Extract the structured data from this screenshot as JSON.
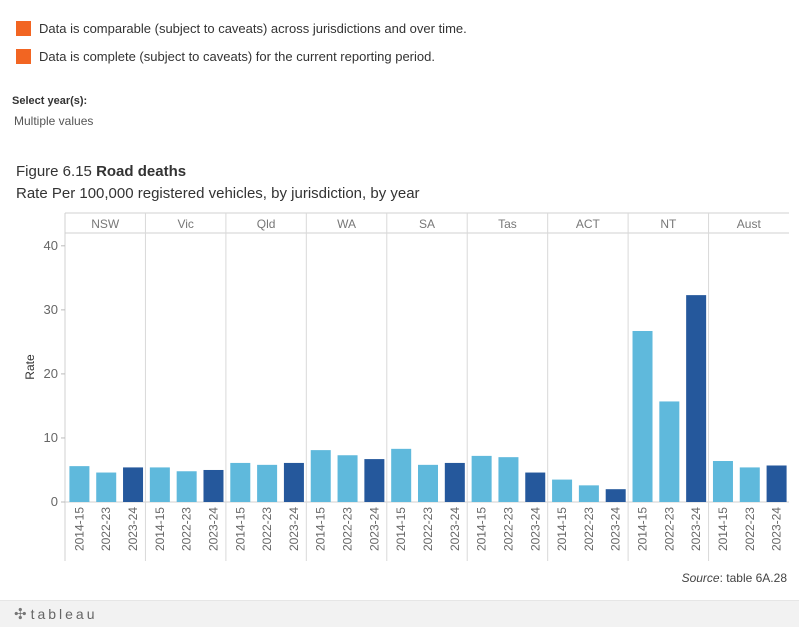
{
  "legend": [
    {
      "text": "Data is comparable (subject to caveats) across jurisdictions and over time.",
      "color": "#f26522"
    },
    {
      "text": "Data is complete (subject to caveats) for the current reporting period.",
      "color": "#f26522"
    }
  ],
  "filter": {
    "label": "Select year(s):",
    "value": "Multiple values"
  },
  "figure": {
    "number": "Figure 6.15",
    "title": "Road deaths",
    "subtitle": "Rate Per 100,000 registered vehicles, by jurisdiction, by year"
  },
  "source": {
    "label": "Source",
    "text": ": table 6A.28"
  },
  "footer": {
    "logo": "tableau"
  },
  "chart_data": {
    "type": "bar",
    "ylabel": "Rate",
    "ylim": [
      0,
      42
    ],
    "yticks": [
      0,
      10,
      20,
      30,
      40
    ],
    "years": [
      "2014-15",
      "2022-23",
      "2023-24"
    ],
    "colors": {
      "past": "#5fb9dc",
      "current": "#25589c"
    },
    "groups": [
      {
        "name": "NSW",
        "values": [
          5.6,
          4.6,
          5.4
        ]
      },
      {
        "name": "Vic",
        "values": [
          5.4,
          4.8,
          5.0
        ]
      },
      {
        "name": "Qld",
        "values": [
          6.1,
          5.8,
          6.1
        ]
      },
      {
        "name": "WA",
        "values": [
          8.1,
          7.3,
          6.7
        ]
      },
      {
        "name": "SA",
        "values": [
          8.3,
          5.8,
          6.1
        ]
      },
      {
        "name": "Tas",
        "values": [
          7.2,
          7.0,
          4.6
        ]
      },
      {
        "name": "ACT",
        "values": [
          3.5,
          2.6,
          2.0
        ]
      },
      {
        "name": "NT",
        "values": [
          26.7,
          15.7,
          32.3
        ]
      },
      {
        "name": "Aust",
        "values": [
          6.4,
          5.4,
          5.7
        ]
      }
    ]
  }
}
